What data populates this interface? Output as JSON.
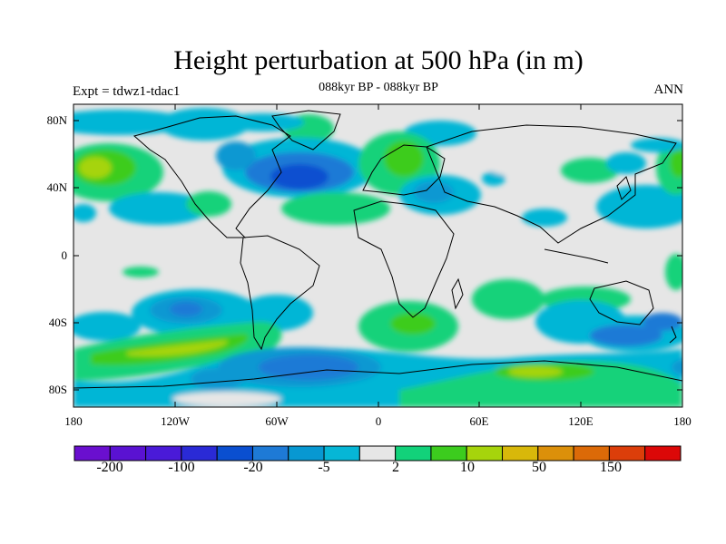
{
  "title": "Height perturbation at 500 hPa (in m)",
  "subtitle": "088kyr BP - 088kyr BP",
  "left_string": "Expt = tdwz1-tdac1",
  "right_string": "ANN",
  "map": {
    "projection": "cylindrical equidistant",
    "lon_range": [
      -180,
      180
    ],
    "lat_range": [
      -90,
      90
    ],
    "missing_color": "#e6e6e6",
    "lat_tick_labels": [
      "80N",
      "40N",
      "0",
      "40S",
      "80S"
    ],
    "lon_tick_labels": [
      "180",
      "120W",
      "60W",
      "0",
      "60E",
      "120E",
      "180"
    ]
  },
  "colorbar": {
    "colors": [
      "#6a0fcf",
      "#5a12d2",
      "#4a1ad8",
      "#2a2ad6",
      "#0a4fd0",
      "#1e7ad6",
      "#0898d2",
      "#06b6d6",
      "#e6e6e6",
      "#12d27a",
      "#3ccc1e",
      "#a6d40c",
      "#d8b80a",
      "#dc900a",
      "#dc6a08",
      "#dc3e0a",
      "#dc0808"
    ],
    "labels": [
      "-200",
      "-100",
      "-20",
      "-5",
      "2",
      "10",
      "50",
      "150"
    ]
  }
}
